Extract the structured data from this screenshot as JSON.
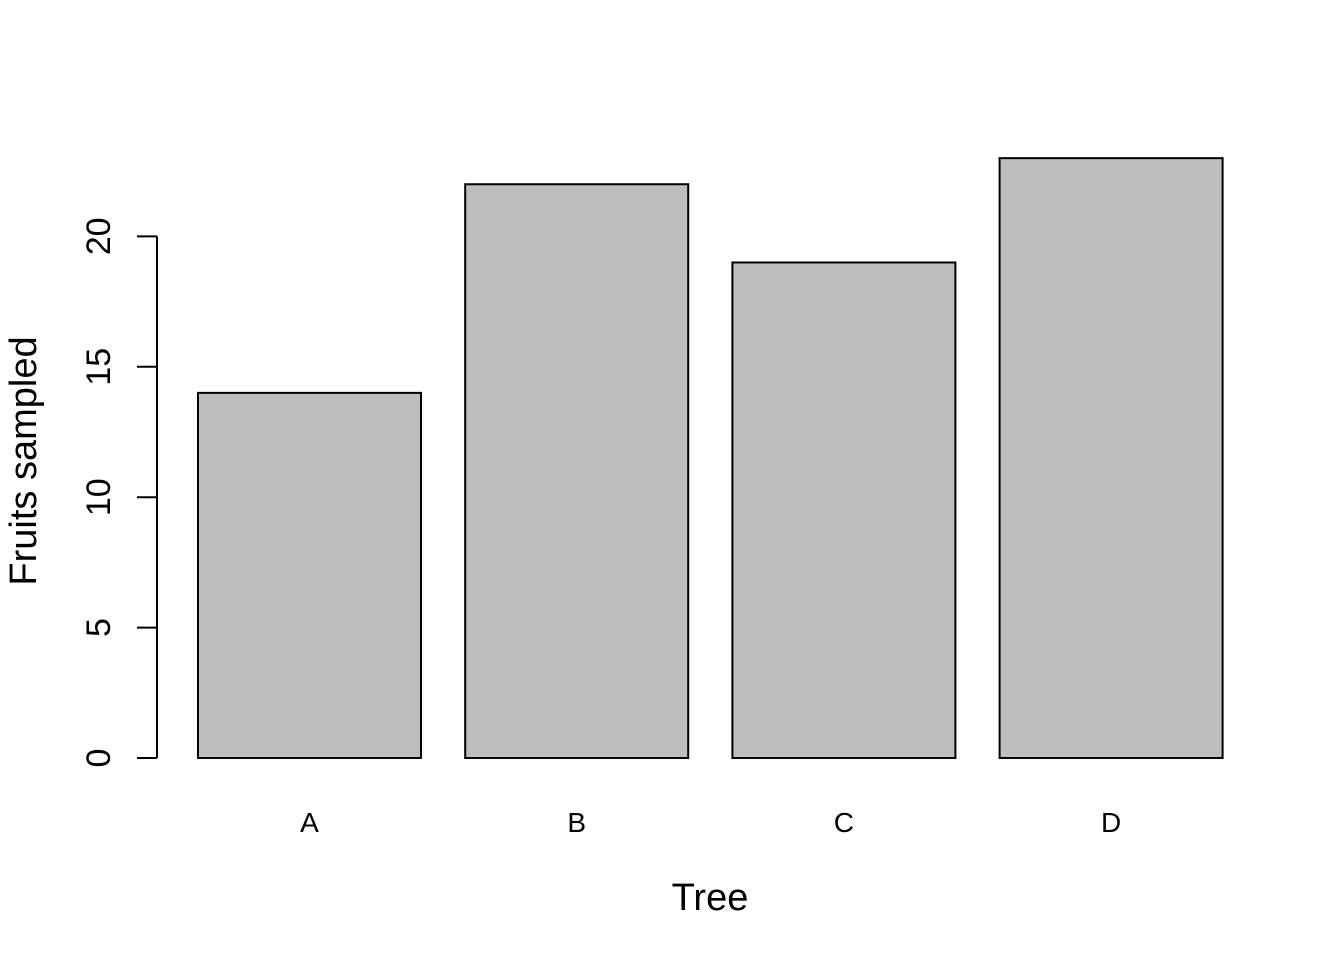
{
  "chart_data": {
    "type": "bar",
    "title": "",
    "xlabel": "Tree",
    "ylabel": "Fruits sampled",
    "categories": [
      "A",
      "B",
      "C",
      "D"
    ],
    "values": [
      14,
      22,
      19,
      23
    ],
    "ylim": [
      0,
      23
    ],
    "yticks": [
      0,
      5,
      10,
      15,
      20
    ],
    "grid": false,
    "legend": "none",
    "bar_color": "#bebebe",
    "border_color": "#000000"
  }
}
